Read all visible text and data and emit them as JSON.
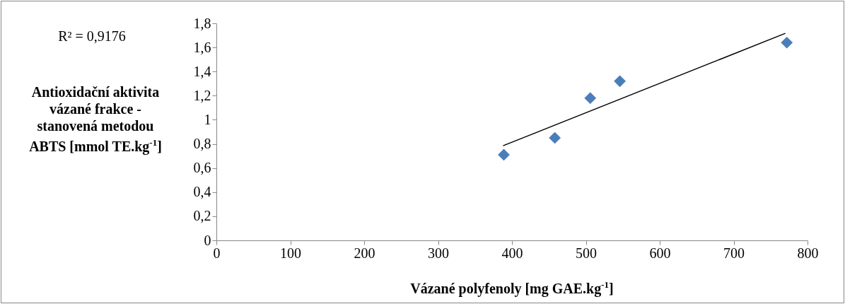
{
  "chart_data": {
    "type": "scatter",
    "xlabel": "Vázané polyfenoly [mg GAE.kg$^{-1}$]",
    "ylabel": "Antioxidační aktivita vázané frakce - stanovená metodou ABTS [mmol TE.kg$^{-1}$]",
    "annotations": [
      "R² = 0,9176"
    ],
    "series": [
      {
        "color": "#4a7ebb",
        "x": [
          389,
          458,
          506,
          546,
          772
        ],
        "values": [
          0.71,
          0.85,
          1.18,
          1.32,
          1.64
        ]
      },
      {
        "type": "line",
        "marker": "none",
        "color": "#000000",
        "x": [
          388,
          770
        ],
        "values": [
          0.785,
          1.717
        ]
      }
    ],
    "marker": "diamond",
    "xlim": [
      0,
      800
    ],
    "xticks": [
      0,
      100,
      200,
      300,
      400,
      500,
      600,
      700,
      800
    ],
    "ylim": [
      0,
      1.8
    ],
    "yticks": [
      0,
      {
        "value": 0.2,
        "label": "0,2"
      },
      {
        "value": 0.4,
        "label": "0,4"
      },
      {
        "value": 0.6,
        "label": "0,6"
      },
      {
        "value": 0.8,
        "label": "0,8"
      },
      1,
      {
        "value": 1.2,
        "label": "1,2"
      },
      {
        "value": 1.4,
        "label": "1,4"
      },
      {
        "value": 1.6,
        "label": "1,6"
      },
      {
        "value": 1.8,
        "label": "1,8"
      }
    ],
    "grid": false
  }
}
